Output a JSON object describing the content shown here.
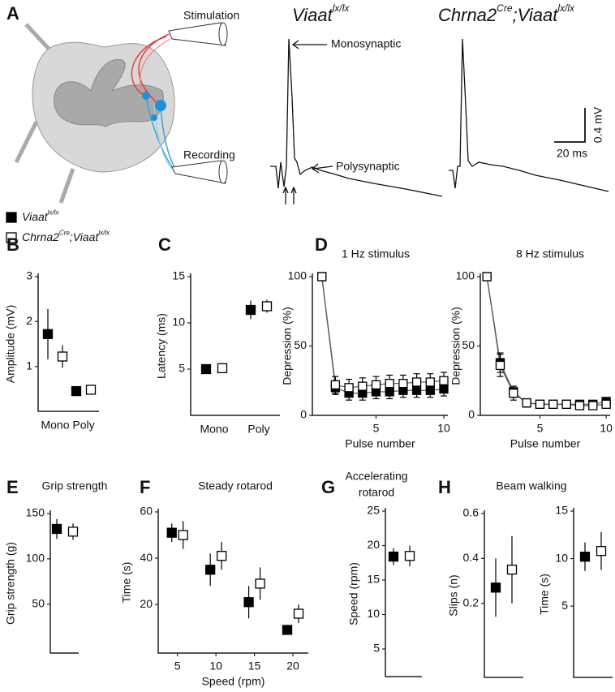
{
  "panel_a": {
    "label": "A",
    "stimulation": "Stimulation",
    "recording": "Recording",
    "traces": [
      [
        "Viaat",
        "lx/lx"
      ],
      [
        "Chrna2",
        "Cre",
        ";Viaat",
        "lx/lx"
      ]
    ],
    "monosynaptic": "Monosynaptic",
    "polysynaptic": "Polysynaptic",
    "scale_y": "0.4 mV",
    "scale_x": "20 ms"
  },
  "legend": [
    [
      "Viaat",
      "lx/lx"
    ],
    [
      "Chrna2",
      "Cre",
      ";Viaat",
      "lx/lx"
    ]
  ],
  "chart_data": [
    {
      "type": "errorbar",
      "panel": "B",
      "ylabel": "Amplitude (mV)",
      "categories": [
        "Mono",
        "Poly"
      ],
      "ylim": [
        0,
        3
      ],
      "yticks": [
        1,
        2,
        3
      ],
      "series": [
        {
          "color": "#000000",
          "fill": "#000000",
          "values": [
            1.72,
            0.45
          ],
          "errors": [
            0.56,
            0.05
          ]
        },
        {
          "color": "#000000",
          "fill": "#ffffff",
          "values": [
            1.22,
            0.48
          ],
          "errors": [
            0.25,
            0.05
          ]
        }
      ]
    },
    {
      "type": "errorbar",
      "panel": "C",
      "ylabel": "Latency (ms)",
      "categories": [
        "Mono",
        "Poly"
      ],
      "ylim": [
        0,
        15
      ],
      "yticks": [
        5,
        10,
        15
      ],
      "series": [
        {
          "color": "#000000",
          "fill": "#000000",
          "values": [
            5.0,
            11.4
          ],
          "errors": [
            0.5,
            1.0
          ]
        },
        {
          "color": "#000000",
          "fill": "#ffffff",
          "values": [
            5.1,
            11.8
          ],
          "errors": [
            0.5,
            0.7
          ]
        }
      ]
    },
    {
      "type": "line",
      "panel": "D",
      "title": "1 Hz stimulus",
      "ylabel": "Depression (%)",
      "xlabel": "Pulse number",
      "x": [
        1,
        2,
        3,
        4,
        5,
        6,
        7,
        8,
        9,
        10
      ],
      "xlim": [
        0.3,
        10.3
      ],
      "xticks": [
        5,
        10
      ],
      "ylim": [
        0,
        100
      ],
      "yticks": [
        0,
        50,
        100
      ],
      "series": [
        {
          "color": "#000000",
          "fill": "#000000",
          "values": [
            100,
            20,
            16,
            16,
            17,
            17,
            18,
            18,
            18,
            19
          ],
          "errors": [
            0,
            5,
            5,
            5,
            5,
            5,
            5,
            5,
            5,
            5
          ]
        },
        {
          "color": "#000000",
          "fill": "#ffffff",
          "values": [
            100,
            22,
            20,
            21,
            22,
            23,
            23,
            24,
            24,
            25
          ],
          "errors": [
            0,
            6,
            6,
            6,
            6,
            6,
            6,
            6,
            6,
            6
          ]
        }
      ]
    },
    {
      "type": "line",
      "title": "8 Hz stimulus",
      "ylabel": "Depression (%)",
      "xlabel": "Pulse number",
      "x": [
        1,
        2,
        3,
        4,
        5,
        6,
        7,
        8,
        9,
        10
      ],
      "xlim": [
        0.5,
        10.3
      ],
      "xticks": [
        5,
        10
      ],
      "ylim": [
        0,
        100
      ],
      "yticks": [
        0,
        50,
        100
      ],
      "series": [
        {
          "color": "#000000",
          "fill": "#000000",
          "values": [
            100,
            38,
            17,
            9,
            8,
            8,
            8,
            8,
            8,
            10
          ],
          "errors": [
            0,
            7,
            4,
            2,
            2,
            2,
            2,
            2,
            2,
            2
          ]
        },
        {
          "color": "#000000",
          "fill": "#ffffff",
          "values": [
            100,
            36,
            16,
            9,
            8,
            8,
            8,
            7,
            7,
            8
          ],
          "errors": [
            0,
            8,
            5,
            3,
            2,
            2,
            2,
            2,
            2,
            2
          ]
        }
      ]
    },
    {
      "type": "errorbar",
      "panel": "E",
      "title": "Grip strength",
      "ylabel": "Grip strength (g)",
      "categories": [
        null
      ],
      "ylim": [
        -4,
        150
      ],
      "yticks": [
        50,
        100,
        150
      ],
      "series": [
        {
          "color": "#000000",
          "fill": "#000000",
          "values": [
            133
          ],
          "errors": [
            11
          ]
        },
        {
          "color": "#000000",
          "fill": "#ffffff",
          "values": [
            130
          ],
          "errors": [
            9
          ]
        }
      ]
    },
    {
      "type": "errorbar",
      "panel": "F",
      "title": "Steady rotarod",
      "ylabel": "Time (s)",
      "xlabel": "Speed (rpm)",
      "x": [
        5,
        10,
        15,
        20
      ],
      "xlim": [
        2.5,
        22
      ],
      "xticks": [
        5,
        10,
        15,
        20
      ],
      "ylim": [
        -1,
        60
      ],
      "yticks": [
        20,
        40,
        60
      ],
      "series": [
        {
          "color": "#000000",
          "fill": "#000000",
          "values": [
            51,
            35,
            21,
            9
          ],
          "errors": [
            4,
            7,
            7,
            2
          ]
        },
        {
          "color": "#000000",
          "fill": "#ffffff",
          "values": [
            50,
            41,
            29,
            16
          ],
          "errors": [
            6,
            6,
            7,
            4
          ]
        }
      ]
    },
    {
      "type": "errorbar",
      "panel": "G",
      "title": [
        "Accelerating",
        "rotarod"
      ],
      "ylabel": "Speed (rpm)",
      "categories": [
        null
      ],
      "ylim": [
        1,
        25
      ],
      "yticks": [
        5,
        10,
        15,
        20,
        25
      ],
      "series": [
        {
          "color": "#000000",
          "fill": "#000000",
          "values": [
            18.4
          ],
          "errors": [
            1.2
          ]
        },
        {
          "color": "#000000",
          "fill": "#ffffff",
          "values": [
            18.5
          ],
          "errors": [
            1.5
          ]
        }
      ]
    },
    {
      "type": "errorbar",
      "panel": "H",
      "title": "Beam walking",
      "ylabel": "Slips (n)",
      "categories": [
        null
      ],
      "ylim": [
        -0.13,
        0.6
      ],
      "yticks": [
        0.2,
        0.4,
        0.6
      ],
      "series": [
        {
          "color": "#000000",
          "fill": "#000000",
          "values": [
            0.27
          ],
          "errors": [
            0.13
          ]
        },
        {
          "color": "#000000",
          "fill": "#ffffff",
          "values": [
            0.35
          ],
          "errors": [
            0.15
          ]
        }
      ]
    },
    {
      "type": "errorbar",
      "ylabel": "Time (s)",
      "categories": [
        null
      ],
      "ylim": [
        -2.5,
        15
      ],
      "yticks": [
        5,
        10,
        15
      ],
      "series": [
        {
          "color": "#000000",
          "fill": "#000000",
          "values": [
            10.2
          ],
          "errors": [
            1.5
          ]
        },
        {
          "color": "#000000",
          "fill": "#ffffff",
          "values": [
            10.8
          ],
          "errors": [
            2.0
          ]
        }
      ]
    }
  ]
}
